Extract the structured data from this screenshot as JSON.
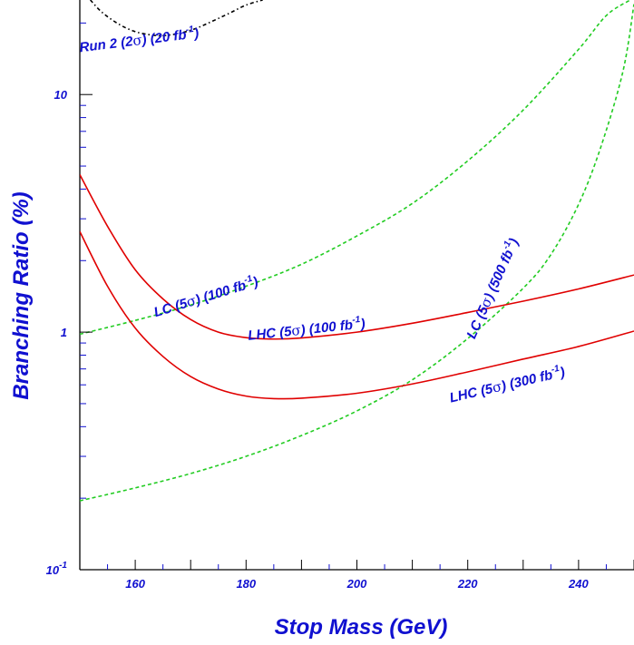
{
  "chart_data": {
    "type": "line",
    "xlabel": "Stop Mass (GeV)",
    "ylabel": "Branching Ratio (%)",
    "xlim": [
      150,
      250
    ],
    "ylim": [
      0.1,
      25
    ],
    "y_scale": "log",
    "x_ticks": [
      {
        "value": 160,
        "label": "160"
      },
      {
        "value": 180,
        "label": "180"
      },
      {
        "value": 200,
        "label": "200"
      },
      {
        "value": 220,
        "label": "220"
      },
      {
        "value": 240,
        "label": "240"
      }
    ],
    "y_ticks": [
      {
        "value": 0.1,
        "base": "10",
        "exp": "-1"
      },
      {
        "value": 1,
        "base": "1",
        "exp": ""
      },
      {
        "value": 10,
        "base": "10",
        "exp": ""
      }
    ],
    "grid": false,
    "colors": {
      "axis_text": "#1010d0",
      "lhc": "#e00000",
      "lc": "#22cc22",
      "run2": "#000000"
    },
    "series": [
      {
        "name": "Run 2 (2σ) (20 fb⁻¹)",
        "style": "dash-dot",
        "color": "#000000",
        "x": [
          151.9,
          154,
          157,
          160,
          163,
          165,
          168,
          171,
          174,
          177,
          180,
          183
        ],
        "y": [
          25,
          22.2,
          19.8,
          18.4,
          17.8,
          17.7,
          18.1,
          19.0,
          20.4,
          22.0,
          23.8,
          25
        ]
      },
      {
        "name": "LC (5σ) (100 fb⁻¹)",
        "style": "dashed",
        "color": "#22cc22",
        "x": [
          150,
          160,
          170,
          180,
          190,
          200,
          210,
          220,
          230,
          240,
          245,
          249.3
        ],
        "y": [
          0.98,
          1.12,
          1.3,
          1.56,
          1.93,
          2.54,
          3.48,
          5.26,
          8.6,
          15.5,
          21.5,
          25
        ]
      },
      {
        "name": "LC (5σ) (500 fb⁻¹)",
        "style": "dashed",
        "color": "#22cc22",
        "x": [
          150,
          160,
          170,
          180,
          190,
          200,
          210,
          220,
          230,
          235,
          240,
          244,
          248,
          250
        ],
        "y": [
          0.195,
          0.221,
          0.254,
          0.3,
          0.367,
          0.466,
          0.63,
          0.94,
          1.53,
          2.12,
          3.45,
          6.0,
          12.5,
          24
        ]
      },
      {
        "name": "LHC (5σ) (100 fb⁻¹)",
        "style": "solid",
        "color": "#e00000",
        "x": [
          150,
          155,
          160,
          165,
          170,
          175,
          180,
          185,
          190,
          200,
          210,
          220,
          230,
          240,
          250
        ],
        "y": [
          4.6,
          2.79,
          1.83,
          1.38,
          1.13,
          1.0,
          0.948,
          0.935,
          0.945,
          1.0,
          1.09,
          1.21,
          1.35,
          1.52,
          1.74
        ]
      },
      {
        "name": "LHC (5σ) (300 fb⁻¹)",
        "style": "solid",
        "color": "#e00000",
        "x": [
          150,
          155,
          160,
          165,
          170,
          175,
          180,
          185,
          190,
          200,
          210,
          220,
          230,
          240,
          250
        ],
        "y": [
          2.65,
          1.56,
          1.04,
          0.79,
          0.65,
          0.576,
          0.538,
          0.525,
          0.527,
          0.553,
          0.605,
          0.68,
          0.77,
          0.87,
          1.01
        ]
      }
    ],
    "annotations": [
      {
        "base": "Run 2 (2",
        "sigma": "σ",
        "mid": ") (20 fb",
        "sup": "-1",
        "end": ")",
        "x": 160.8,
        "y": 16.2,
        "angle": -7
      },
      {
        "base": "LC (5",
        "sigma": "σ",
        "mid": ") (100 fb",
        "sup": "-1",
        "end": ")",
        "x": 173.0,
        "y": 1.35,
        "angle": -17
      },
      {
        "base": "LC (5",
        "sigma": "σ",
        "mid": ") (500 fb",
        "sup": "-1",
        "end": ")",
        "x": 225.2,
        "y": 1.5,
        "angle": -66
      },
      {
        "base": "LHC (5",
        "sigma": "σ",
        "mid": ") (100 fb",
        "sup": "-1",
        "end": ")",
        "x": 191.0,
        "y": 0.983,
        "angle": -6
      },
      {
        "base": "LHC (5",
        "sigma": "σ",
        "mid": ") (300 fb",
        "sup": "-1",
        "end": ")",
        "x": 227.3,
        "y": 0.575,
        "angle": -13
      }
    ]
  }
}
